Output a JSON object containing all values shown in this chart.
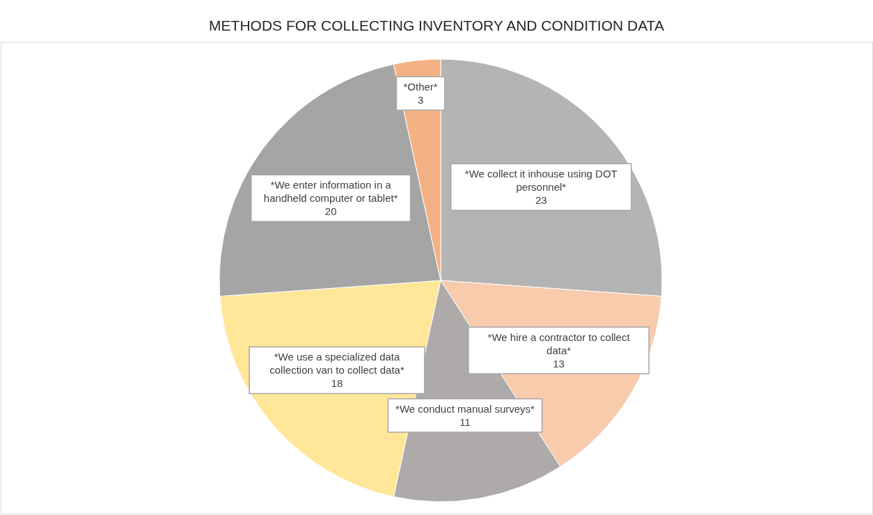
{
  "chart_data": {
    "type": "pie",
    "title": "METHODS FOR COLLECTING INVENTORY AND CONDITION DATA",
    "categories": [
      "*We collect it inhouse using DOT personnel*",
      "*We hire a contractor to collect data*",
      "*We conduct manual surveys*",
      "*We use a specialized data collection van to collect data*",
      "*We enter information in a handheld computer or tablet*",
      "*Other*"
    ],
    "values": [
      23,
      13,
      11,
      18,
      20,
      3
    ],
    "colors": [
      "#b4b4b4",
      "#f8cbad",
      "#aeaaaa",
      "#ffe699",
      "#a5a5a5",
      "#f4b183"
    ],
    "data_labels": true
  }
}
